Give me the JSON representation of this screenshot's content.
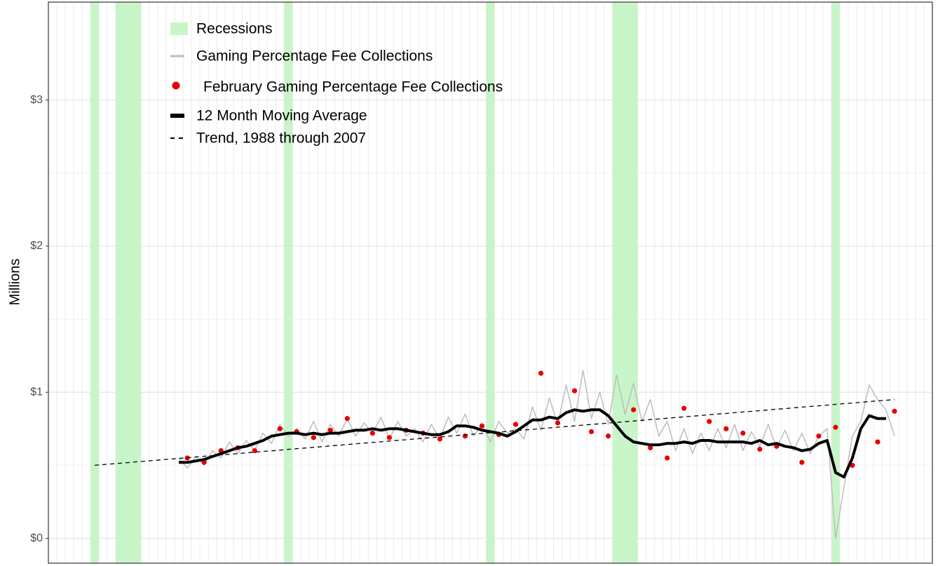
{
  "chart_data": {
    "type": "line",
    "y_label": "Millions",
    "ylim": [
      -0.17,
      3.67
    ],
    "yticks": [
      {
        "value": 0,
        "label": "$0"
      },
      {
        "value": 1,
        "label": "$1"
      },
      {
        "value": 2,
        "label": "$2"
      },
      {
        "value": 3,
        "label": "$3"
      }
    ],
    "grid": true,
    "legend": "top-left",
    "categories": [
      null,
      null,
      null,
      null,
      null,
      null,
      null,
      null,
      null,
      null,
      null,
      null,
      null,
      null,
      null,
      null,
      null,
      null,
      null,
      null,
      null,
      null,
      null,
      null,
      null,
      null,
      null,
      null,
      null,
      null,
      null,
      null,
      null,
      null,
      null,
      null,
      null,
      null,
      null,
      null,
      null,
      null,
      null,
      null,
      null,
      null,
      null,
      null,
      null,
      null,
      null,
      null,
      null,
      null,
      null,
      null,
      null,
      null,
      null,
      null,
      null,
      null,
      null,
      null,
      null,
      null,
      null,
      null,
      null,
      null,
      null,
      null,
      null,
      null,
      null,
      null,
      null,
      null,
      null,
      null,
      null,
      null,
      null,
      null,
      null,
      null,
      null,
      null,
      null,
      null,
      null,
      null,
      null,
      null,
      null,
      null,
      null,
      null,
      null,
      null,
      null,
      null,
      null,
      null,
      null
    ],
    "series": [
      {
        "name": "Recessions",
        "kind": "band",
        "color": "#c8f5c8",
        "active": [
          false,
          false,
          false,
          false,
          false,
          true,
          false,
          false,
          true,
          true,
          true,
          false,
          false,
          false,
          false,
          false,
          false,
          false,
          false,
          false,
          false,
          false,
          false,
          false,
          false,
          false,
          false,
          false,
          true,
          false,
          false,
          false,
          false,
          false,
          false,
          false,
          false,
          false,
          false,
          false,
          false,
          false,
          false,
          false,
          false,
          false,
          false,
          false,
          false,
          false,
          false,
          false,
          true,
          false,
          false,
          false,
          false,
          false,
          false,
          false,
          false,
          false,
          false,
          false,
          false,
          false,
          false,
          true,
          true,
          true,
          false,
          false,
          false,
          false,
          false,
          false,
          false,
          false,
          false,
          false,
          false,
          false,
          false,
          false,
          false,
          false,
          false,
          false,
          false,
          false,
          false,
          false,
          false,
          true,
          false,
          false,
          false,
          false,
          false,
          false,
          false,
          false,
          false,
          false,
          false
        ]
      },
      {
        "name": "Gaming Percentage Fee Collections",
        "kind": "line",
        "color": "#bdbdbd",
        "values": [
          null,
          null,
          null,
          null,
          null,
          null,
          null,
          null,
          null,
          null,
          null,
          null,
          null,
          null,
          null,
          0.55,
          0.48,
          0.56,
          0.5,
          0.6,
          0.55,
          0.66,
          0.58,
          0.67,
          0.6,
          0.72,
          0.65,
          0.78,
          0.7,
          0.75,
          0.68,
          0.8,
          0.66,
          0.78,
          0.7,
          0.82,
          0.7,
          0.79,
          0.72,
          0.83,
          0.68,
          0.8,
          0.7,
          0.75,
          0.66,
          0.78,
          0.68,
          0.83,
          0.72,
          0.85,
          0.7,
          0.78,
          0.66,
          0.8,
          0.72,
          0.75,
          0.68,
          0.9,
          0.74,
          0.96,
          0.78,
          1.05,
          0.8,
          1.15,
          0.82,
          1.0,
          0.78,
          1.12,
          0.85,
          1.06,
          0.8,
          0.95,
          0.7,
          0.8,
          0.6,
          0.75,
          0.58,
          0.72,
          0.6,
          0.75,
          0.62,
          0.78,
          0.6,
          0.73,
          0.63,
          0.78,
          0.62,
          0.74,
          0.6,
          0.72,
          0.58,
          0.7,
          0.75,
          0.0,
          0.35,
          0.7,
          0.8,
          1.05,
          0.95,
          0.88,
          0.7,
          null,
          null,
          null,
          null
        ]
      },
      {
        "name": "February Gaming Percentage Fee Collections",
        "kind": "points",
        "color": "#e60000",
        "values": [
          null,
          null,
          null,
          null,
          null,
          null,
          null,
          null,
          null,
          null,
          null,
          null,
          null,
          null,
          null,
          null,
          0.55,
          null,
          0.52,
          null,
          0.6,
          null,
          0.62,
          null,
          0.6,
          null,
          null,
          0.75,
          null,
          0.73,
          null,
          0.69,
          null,
          0.74,
          null,
          0.82,
          null,
          null,
          0.72,
          null,
          0.69,
          null,
          0.74,
          null,
          0.72,
          null,
          0.68,
          null,
          null,
          0.7,
          null,
          0.77,
          null,
          0.71,
          null,
          0.78,
          null,
          null,
          1.13,
          null,
          0.79,
          null,
          1.01,
          null,
          0.73,
          null,
          0.7,
          null,
          null,
          0.88,
          null,
          0.62,
          null,
          0.55,
          null,
          0.89,
          null,
          null,
          0.8,
          null,
          0.75,
          null,
          0.72,
          null,
          0.61,
          null,
          0.63,
          null,
          null,
          0.52,
          null,
          0.7,
          null,
          0.76,
          null,
          0.5,
          null,
          null,
          0.66,
          null,
          0.87,
          null,
          null,
          null,
          null
        ]
      },
      {
        "name": "12 Month Moving Average",
        "kind": "line",
        "color": "#000000",
        "width": 4,
        "values": [
          null,
          null,
          null,
          null,
          null,
          null,
          null,
          null,
          null,
          null,
          null,
          null,
          null,
          null,
          null,
          0.52,
          0.52,
          0.53,
          0.54,
          0.56,
          0.58,
          0.6,
          0.62,
          0.63,
          0.65,
          0.67,
          0.7,
          0.71,
          0.72,
          0.72,
          0.71,
          0.72,
          0.71,
          0.72,
          0.72,
          0.73,
          0.74,
          0.74,
          0.75,
          0.74,
          0.75,
          0.75,
          0.74,
          0.73,
          0.72,
          0.71,
          0.71,
          0.73,
          0.77,
          0.77,
          0.76,
          0.74,
          0.73,
          0.72,
          0.7,
          0.73,
          0.77,
          0.81,
          0.81,
          0.83,
          0.82,
          0.86,
          0.88,
          0.87,
          0.88,
          0.88,
          0.84,
          0.77,
          0.7,
          0.66,
          0.65,
          0.64,
          0.64,
          0.65,
          0.65,
          0.66,
          0.65,
          0.67,
          0.67,
          0.66,
          0.66,
          0.66,
          0.66,
          0.65,
          0.67,
          0.64,
          0.65,
          0.63,
          0.62,
          0.6,
          0.61,
          0.65,
          0.67,
          0.45,
          0.42,
          0.55,
          0.75,
          0.84,
          0.82,
          0.82,
          null,
          null,
          null,
          null,
          null
        ]
      },
      {
        "name": "Trend, 1988 through 2007",
        "kind": "dashed",
        "color": "#000000",
        "values": [
          null,
          null,
          null,
          null,
          null,
          0.5,
          0.505,
          0.509,
          0.514,
          0.519,
          0.524,
          0.528,
          0.533,
          0.538,
          0.543,
          0.547,
          0.552,
          0.557,
          0.562,
          0.566,
          0.571,
          0.576,
          0.58,
          0.585,
          0.59,
          0.595,
          0.599,
          0.604,
          0.609,
          0.614,
          0.618,
          0.623,
          0.628,
          0.633,
          0.637,
          0.642,
          0.647,
          0.652,
          0.656,
          0.661,
          0.666,
          0.671,
          0.675,
          0.68,
          0.685,
          0.689,
          0.694,
          0.699,
          0.704,
          0.708,
          0.713,
          0.718,
          0.723,
          0.727,
          0.732,
          0.737,
          0.742,
          0.746,
          0.751,
          0.756,
          0.761,
          0.765,
          0.77,
          0.775,
          0.78,
          0.784,
          0.789,
          0.794,
          0.798,
          0.803,
          0.808,
          0.813,
          0.817,
          0.822,
          0.827,
          0.832,
          0.836,
          0.841,
          0.846,
          0.851,
          0.855,
          0.86,
          0.865,
          0.869,
          0.874,
          0.879,
          0.884,
          0.888,
          0.893,
          0.898,
          0.903,
          0.907,
          0.912,
          0.917,
          0.922,
          0.926,
          0.931,
          0.936,
          0.941,
          0.945,
          0.95,
          null,
          null,
          null,
          null
        ]
      }
    ]
  }
}
